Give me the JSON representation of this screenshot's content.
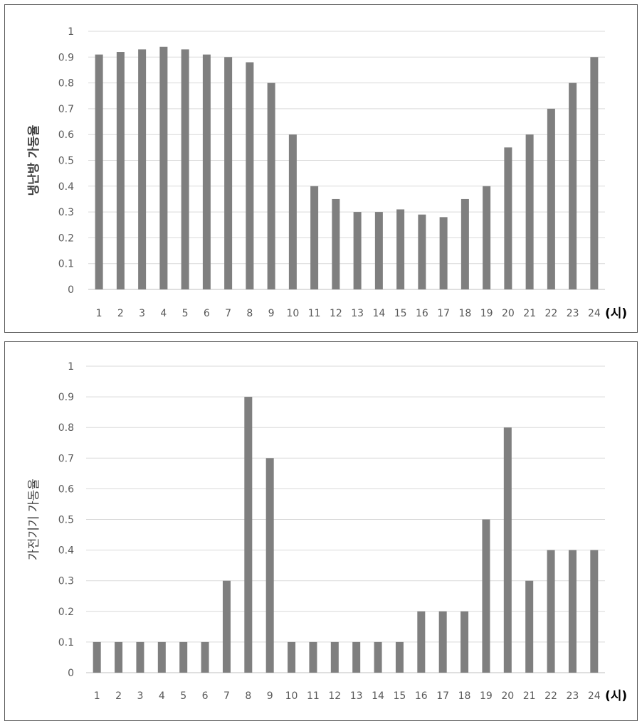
{
  "colors": {
    "bar": "#7f7f7f",
    "grid": "#d9d9d9",
    "axis": "#bfbfbf"
  },
  "chart_data": [
    {
      "type": "bar",
      "ylabel": "냉난방 가동율",
      "x_unit": "(시)",
      "ylim": [
        0,
        1
      ],
      "yticks": [
        "0",
        "0.1",
        "0.2",
        "0.3",
        "0.4",
        "0.5",
        "0.6",
        "0.7",
        "0.8",
        "0.9",
        "1"
      ],
      "categories": [
        "1",
        "2",
        "3",
        "4",
        "5",
        "6",
        "7",
        "8",
        "9",
        "10",
        "11",
        "12",
        "13",
        "14",
        "15",
        "16",
        "17",
        "18",
        "19",
        "20",
        "21",
        "22",
        "23",
        "24"
      ],
      "values": [
        0.91,
        0.92,
        0.93,
        0.94,
        0.93,
        0.91,
        0.9,
        0.88,
        0.8,
        0.6,
        0.4,
        0.35,
        0.3,
        0.3,
        0.31,
        0.29,
        0.28,
        0.35,
        0.4,
        0.55,
        0.6,
        0.7,
        0.8,
        0.9
      ],
      "grid": true,
      "legend": "none"
    },
    {
      "type": "bar",
      "ylabel": "가전기기 가동율",
      "x_unit": "(시)",
      "ylim": [
        0,
        1
      ],
      "yticks": [
        "0",
        "0.1",
        "0.2",
        "0.3",
        "0.4",
        "0.5",
        "0.6",
        "0.7",
        "0.8",
        "0.9",
        "1"
      ],
      "categories": [
        "1",
        "2",
        "3",
        "4",
        "5",
        "6",
        "7",
        "8",
        "9",
        "10",
        "11",
        "12",
        "13",
        "14",
        "15",
        "16",
        "17",
        "18",
        "19",
        "20",
        "21",
        "22",
        "23",
        "24"
      ],
      "values": [
        0.1,
        0.1,
        0.1,
        0.1,
        0.1,
        0.1,
        0.3,
        0.9,
        0.7,
        0.1,
        0.1,
        0.1,
        0.1,
        0.1,
        0.1,
        0.2,
        0.2,
        0.2,
        0.5,
        0.8,
        0.3,
        0.4,
        0.4,
        0.4
      ],
      "grid": true,
      "legend": "none"
    }
  ]
}
